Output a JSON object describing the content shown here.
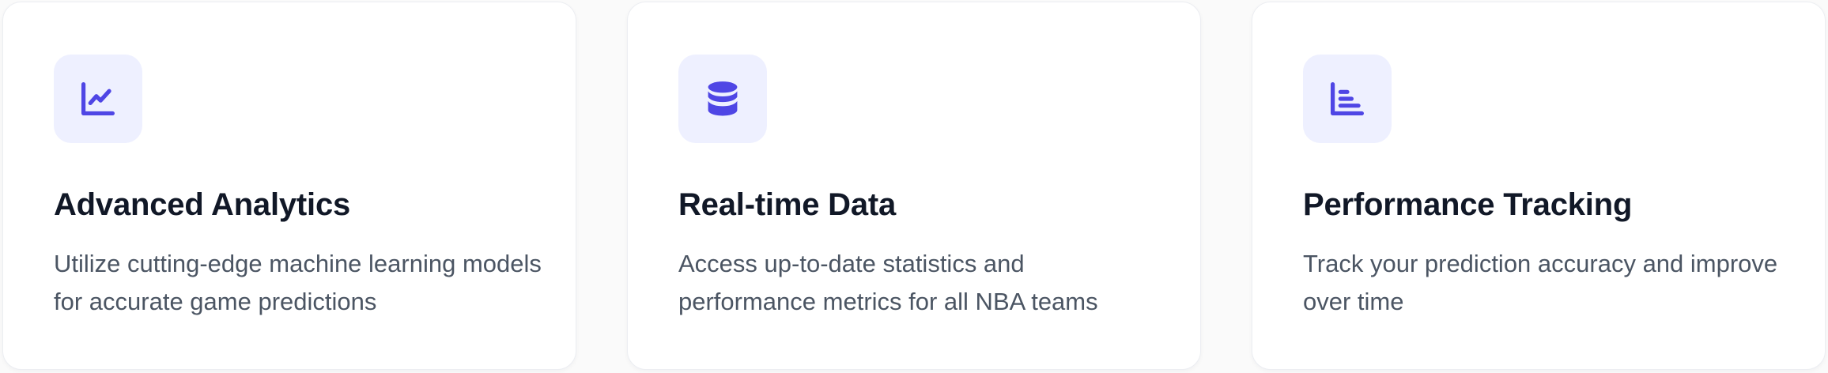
{
  "theme": {
    "accent": "#4f46e5",
    "icon_bg": "#eef0ff",
    "title_color": "#111827",
    "text_color": "#4b5563"
  },
  "features": [
    {
      "icon": "chart-line-icon",
      "title": "Advanced Analytics",
      "description": "Utilize cutting-edge machine learning models for accurate game predictions"
    },
    {
      "icon": "database-icon",
      "title": "Real-time Data",
      "description": "Access up-to-date statistics and performance metrics for all NBA teams"
    },
    {
      "icon": "chart-bar-icon",
      "title": "Performance Tracking",
      "description": "Track your prediction accuracy and improve over time"
    }
  ]
}
